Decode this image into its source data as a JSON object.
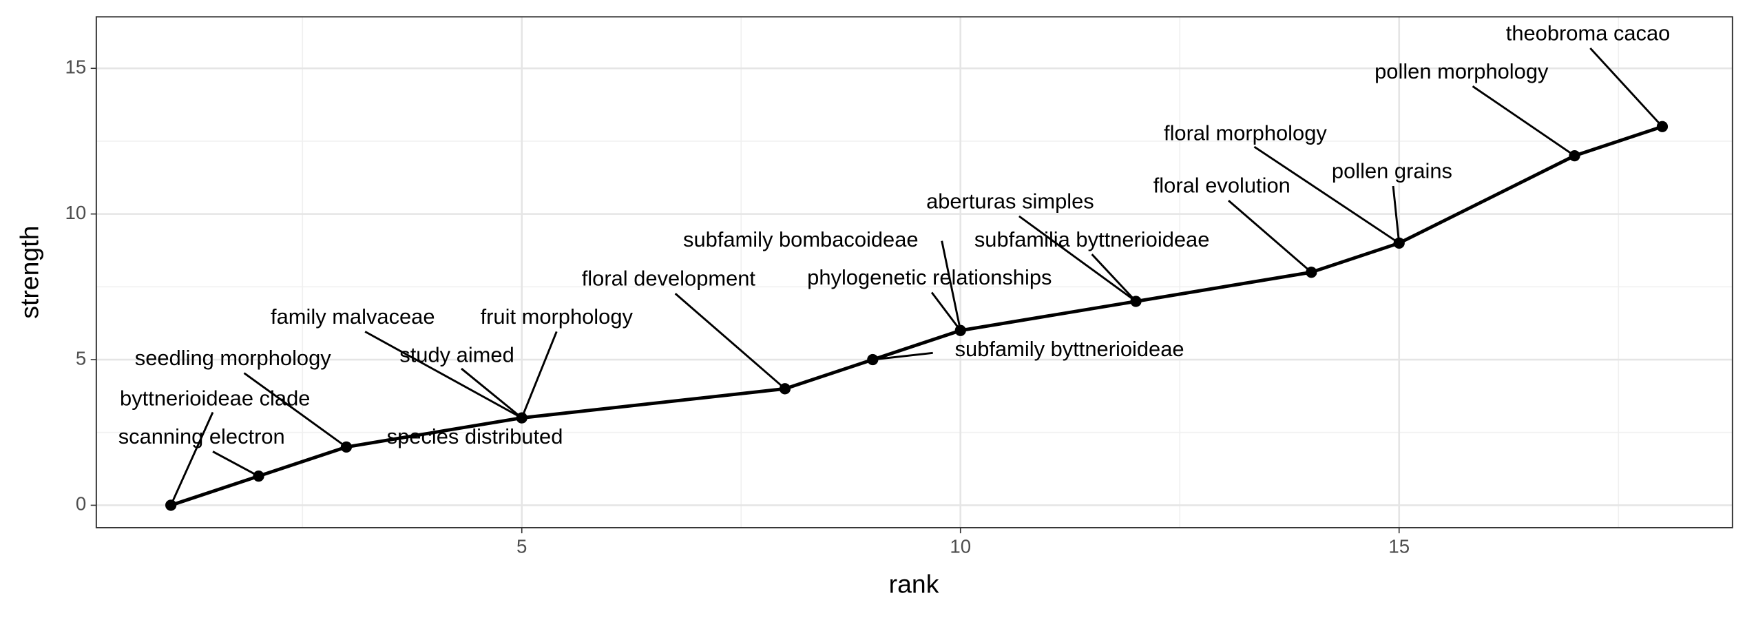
{
  "chart_data": {
    "type": "line",
    "x_label": "rank",
    "y_label": "strength",
    "x": [
      1,
      2,
      3,
      5,
      8,
      9,
      10,
      12,
      14,
      15,
      17,
      18
    ],
    "values": [
      0,
      1,
      2,
      3,
      4,
      5,
      6,
      7,
      8,
      9,
      12,
      13
    ],
    "point_labels": [
      [
        "byttnerioideae clade"
      ],
      [
        "scanning electron"
      ],
      [
        "seedling morphology",
        "species distributed"
      ],
      [
        "family malvaceae",
        "study aimed",
        "fruit morphology"
      ],
      [
        "floral development"
      ],
      [
        "subfamily byttnerioideae"
      ],
      [
        "subfamily bombacoideae",
        "phylogenetic relationships"
      ],
      [
        "aberturas simples",
        "subfamilia byttnerioideae"
      ],
      [
        "floral evolution"
      ],
      [
        "floral morphology",
        "pollen grains"
      ],
      [
        "pollen morphology"
      ],
      [
        "theobroma cacao"
      ]
    ],
    "color": "#000000",
    "xlim": [
      0.15,
      18.8
    ],
    "ylim": [
      -0.77,
      16.77
    ],
    "xticks": [
      5,
      10,
      15
    ],
    "yticks": [
      0,
      5,
      10,
      15
    ],
    "x_minor_ticks": [
      2.5,
      7.5,
      12.5,
      17.5
    ],
    "y_minor_ticks": [
      2.5,
      7.5,
      12.5
    ],
    "grid": true
  }
}
